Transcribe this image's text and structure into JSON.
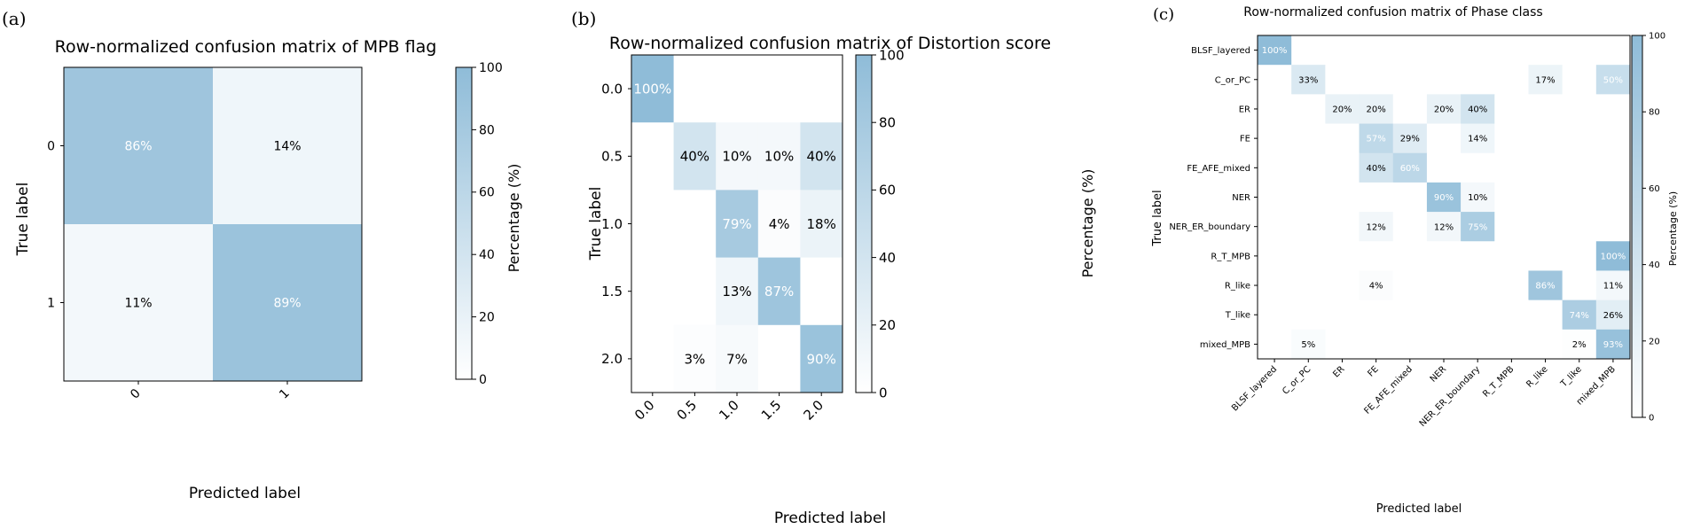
{
  "chart_data": [
    {
      "type": "heatmap",
      "panel_label": "(a)",
      "title": "Row-normalized confusion matrix of MPB flag",
      "xlabel": "Predicted label",
      "ylabel": "True label",
      "x_categories": [
        "0",
        "1"
      ],
      "y_categories": [
        "0",
        "1"
      ],
      "values": [
        [
          86,
          14
        ],
        [
          11,
          89
        ]
      ],
      "cell_labels": [
        [
          "86%",
          "14%"
        ],
        [
          "11%",
          "89%"
        ]
      ],
      "colorbar": {
        "label": "Percentage (%)",
        "range": [
          0,
          100
        ],
        "ticks": [
          "0",
          "20",
          "40",
          "60",
          "80",
          "100"
        ]
      }
    },
    {
      "type": "heatmap",
      "panel_label": "(b)",
      "title": "Row-normalized confusion matrix of Distortion score",
      "xlabel": "Predicted label",
      "ylabel": "True label",
      "x_categories": [
        "0.0",
        "0.5",
        "1.0",
        "1.5",
        "2.0"
      ],
      "y_categories": [
        "0.0",
        "0.5",
        "1.0",
        "1.5",
        "2.0"
      ],
      "values": [
        [
          100,
          0,
          0,
          0,
          0
        ],
        [
          0,
          40,
          10,
          10,
          40
        ],
        [
          0,
          0,
          79,
          4,
          18
        ],
        [
          0,
          0,
          13,
          87,
          0
        ],
        [
          0,
          3,
          7,
          0,
          90
        ]
      ],
      "cell_labels": [
        [
          "100%",
          "",
          "",
          "",
          ""
        ],
        [
          "",
          "40%",
          "10%",
          "10%",
          "40%"
        ],
        [
          "",
          "",
          "79%",
          "4%",
          "18%"
        ],
        [
          "",
          "",
          "13%",
          "87%",
          ""
        ],
        [
          "",
          "3%",
          "7%",
          "",
          "90%"
        ]
      ],
      "colorbar": {
        "label": "Percentage (%)",
        "range": [
          0,
          100
        ],
        "ticks": [
          "0",
          "20",
          "40",
          "60",
          "80",
          "100"
        ]
      }
    },
    {
      "type": "heatmap",
      "panel_label": "(c)",
      "title": "Row-normalized confusion matrix of Phase class",
      "xlabel": "Predicted label",
      "ylabel": "True label",
      "x_categories": [
        "BLSF_layered",
        "C_or_PC",
        "ER",
        "FE",
        "FE_AFE_mixed",
        "NER",
        "NER_ER_boundary",
        "R_T_MPB",
        "R_like",
        "T_like",
        "mixed_MPB"
      ],
      "y_categories": [
        "BLSF_layered",
        "C_or_PC",
        "ER",
        "FE",
        "FE_AFE_mixed",
        "NER",
        "NER_ER_boundary",
        "R_T_MPB",
        "R_like",
        "T_like",
        "mixed_MPB"
      ],
      "values": [
        [
          100,
          0,
          0,
          0,
          0,
          0,
          0,
          0,
          0,
          0,
          0
        ],
        [
          0,
          33,
          0,
          0,
          0,
          0,
          0,
          0,
          17,
          0,
          50
        ],
        [
          0,
          0,
          20,
          20,
          0,
          20,
          40,
          0,
          0,
          0,
          0
        ],
        [
          0,
          0,
          0,
          57,
          29,
          0,
          14,
          0,
          0,
          0,
          0
        ],
        [
          0,
          0,
          0,
          40,
          60,
          0,
          0,
          0,
          0,
          0,
          0
        ],
        [
          0,
          0,
          0,
          0,
          0,
          90,
          10,
          0,
          0,
          0,
          0
        ],
        [
          0,
          0,
          0,
          12,
          0,
          12,
          75,
          0,
          0,
          0,
          0
        ],
        [
          0,
          0,
          0,
          0,
          0,
          0,
          0,
          0,
          0,
          0,
          100
        ],
        [
          0,
          0,
          0,
          4,
          0,
          0,
          0,
          0,
          86,
          0,
          11
        ],
        [
          0,
          0,
          0,
          0,
          0,
          0,
          0,
          0,
          0,
          74,
          26
        ],
        [
          0,
          5,
          0,
          0,
          0,
          0,
          0,
          0,
          0,
          2,
          93
        ]
      ],
      "cell_labels": [
        [
          "100%",
          "",
          "",
          "",
          "",
          "",
          "",
          "",
          "",
          "",
          ""
        ],
        [
          "",
          "33%",
          "",
          "",
          "",
          "",
          "",
          "",
          "17%",
          "",
          "50%"
        ],
        [
          "",
          "",
          "20%",
          "20%",
          "",
          "20%",
          "40%",
          "",
          "",
          "",
          ""
        ],
        [
          "",
          "",
          "",
          "57%",
          "29%",
          "",
          "14%",
          "",
          "",
          "",
          ""
        ],
        [
          "",
          "",
          "",
          "40%",
          "60%",
          "",
          "",
          "",
          "",
          "",
          ""
        ],
        [
          "",
          "",
          "",
          "",
          "",
          "90%",
          "10%",
          "",
          "",
          "",
          ""
        ],
        [
          "",
          "",
          "",
          "12%",
          "",
          "12%",
          "75%",
          "",
          "",
          "",
          ""
        ],
        [
          "",
          "",
          "",
          "",
          "",
          "",
          "",
          "",
          "",
          "",
          "100%"
        ],
        [
          "",
          "",
          "",
          "4%",
          "",
          "",
          "",
          "",
          "86%",
          "",
          "11%"
        ],
        [
          "",
          "",
          "",
          "",
          "",
          "",
          "",
          "",
          "",
          "74%",
          "26%"
        ],
        [
          "",
          "5%",
          "",
          "",
          "",
          "",
          "",
          "",
          "",
          "2%",
          "93%"
        ]
      ],
      "colorbar": {
        "label": "Percentage (%)",
        "range": [
          0,
          100
        ],
        "ticks": [
          "0",
          "20",
          "40",
          "60",
          "80",
          "100"
        ]
      }
    }
  ],
  "colors": {
    "high": "#8fbcd8",
    "low": "#ffffff",
    "axis": "#000000",
    "text_dark": "#000000",
    "text_light": "#ffffff"
  }
}
